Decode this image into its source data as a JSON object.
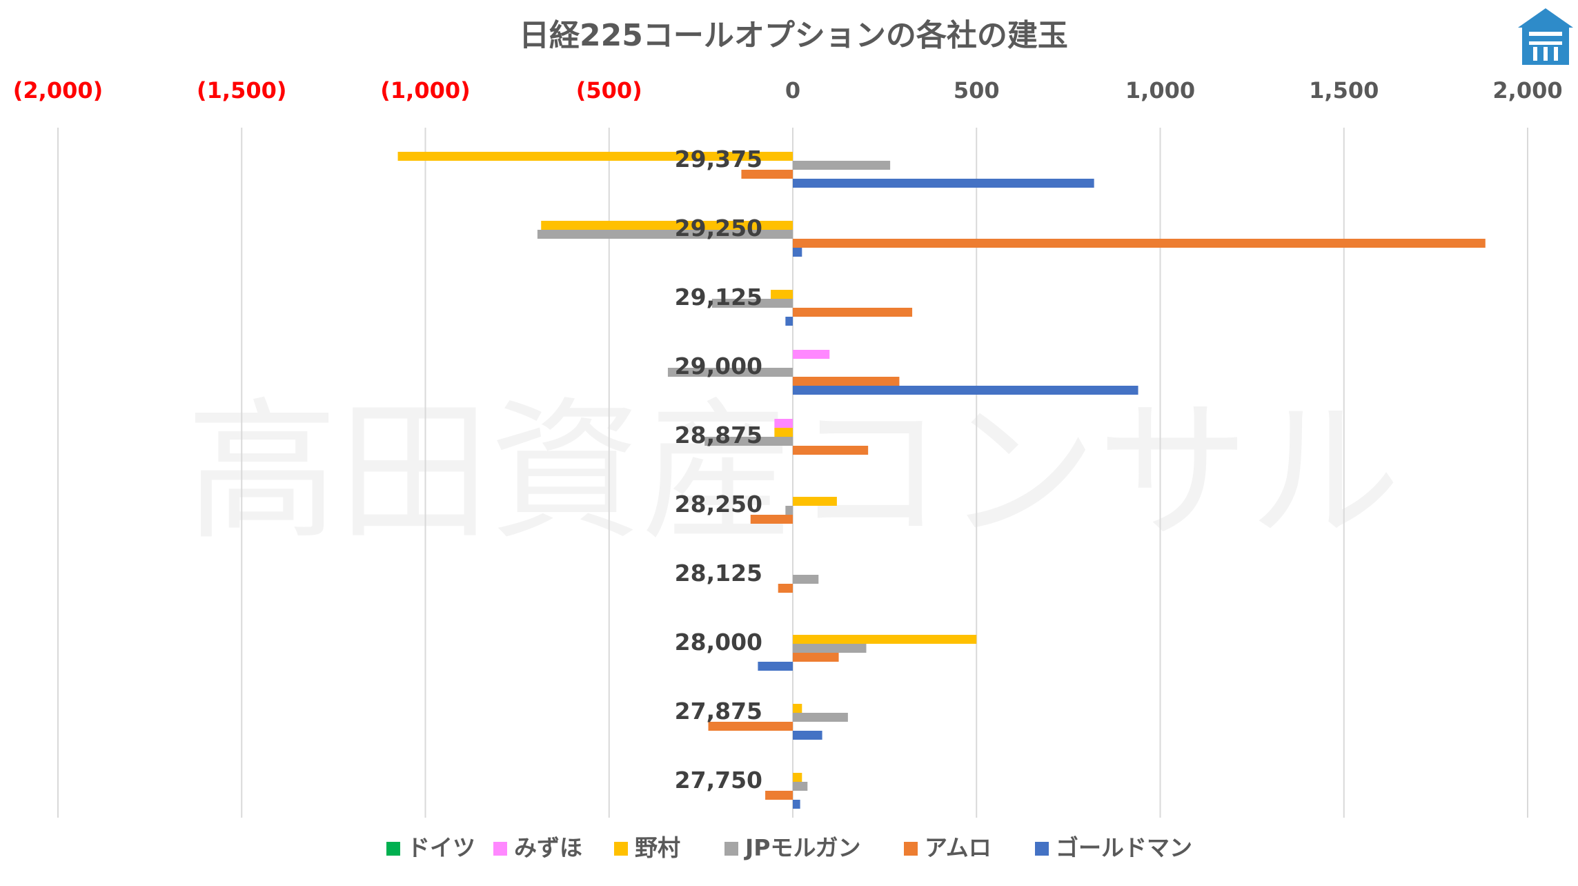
{
  "watermark": "高田資産コンサル",
  "chart_data": {
    "type": "bar",
    "orientation": "horizontal",
    "title": "日経225コールオプションの各社の建玉",
    "categories": [
      "29,375",
      "29,250",
      "29,125",
      "29,000",
      "28,875",
      "28,250",
      "28,125",
      "28,000",
      "27,875",
      "27,750"
    ],
    "xlim": [
      -2000,
      2000
    ],
    "x_ticks": [
      -2000,
      -1500,
      -1000,
      -500,
      0,
      500,
      1000,
      1500,
      2000
    ],
    "x_tick_labels": [
      "(2,000)",
      "(1,500)",
      "(1,000)",
      "(500)",
      "0",
      "500",
      "1,000",
      "1,500",
      "2,000"
    ],
    "negative_tick_color": "#ff0000",
    "grid": true,
    "legend_position": "bottom",
    "series": [
      {
        "name": "ドイツ",
        "color": "#00b050",
        "values": [
          0,
          0,
          0,
          0,
          0,
          0,
          0,
          0,
          0,
          0
        ]
      },
      {
        "name": "みずほ",
        "color": "#ff88ff",
        "values": [
          0,
          0,
          0,
          100,
          -50,
          0,
          0,
          0,
          0,
          0
        ]
      },
      {
        "name": "野村",
        "color": "#ffc000",
        "values": [
          -1075,
          -685,
          -60,
          0,
          -50,
          120,
          0,
          500,
          25,
          25
        ]
      },
      {
        "name": "JPモルガン",
        "color": "#a5a5a5",
        "values": [
          265,
          -695,
          -220,
          -340,
          -240,
          -20,
          70,
          200,
          150,
          40
        ]
      },
      {
        "name": "アムロ",
        "color": "#ed7d31",
        "values": [
          -140,
          1885,
          325,
          290,
          205,
          -115,
          -40,
          125,
          -230,
          -75
        ]
      },
      {
        "name": "ゴールドマン",
        "color": "#4472c4",
        "values": [
          820,
          25,
          -20,
          940,
          0,
          0,
          0,
          -95,
          80,
          20
        ]
      }
    ]
  }
}
